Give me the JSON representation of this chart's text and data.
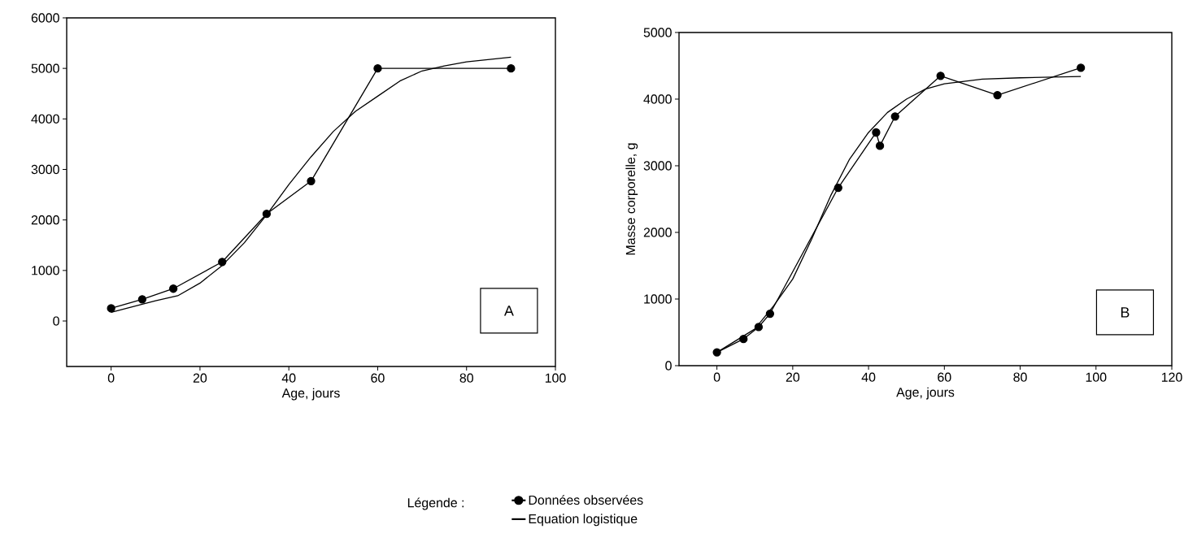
{
  "chart_data": [
    {
      "type": "line",
      "xlabel": "Age, jours",
      "xlim": [
        -10,
        100
      ],
      "ylim": [
        -900,
        6000
      ],
      "xticks": [
        0,
        20,
        40,
        60,
        80,
        100
      ],
      "yticks": [
        0,
        1000,
        2000,
        3000,
        4000,
        5000,
        6000
      ],
      "grid": false,
      "legend": false,
      "annotations": [
        "A"
      ],
      "series": [
        {
          "color": "#000000",
          "marker": "circle",
          "x": [
            0,
            7,
            14,
            25,
            35,
            45,
            60,
            90
          ],
          "values": [
            250,
            430,
            640,
            1170,
            2120,
            2770,
            5000,
            5000
          ]
        },
        {
          "color": "#000000",
          "marker": "none",
          "x": [
            0,
            10,
            15,
            20,
            25,
            30,
            35,
            40,
            45,
            50,
            55,
            60,
            65,
            70,
            75,
            80,
            90
          ],
          "values": [
            170,
            400,
            500,
            750,
            1100,
            1550,
            2100,
            2700,
            3250,
            3750,
            4150,
            4450,
            4750,
            4950,
            5050,
            5130,
            5220
          ]
        }
      ]
    },
    {
      "type": "line",
      "xlabel": "Age, jours",
      "ylabel": "Masse corporelle, g",
      "xlim": [
        -10,
        120
      ],
      "ylim": [
        0,
        5000
      ],
      "xticks": [
        0,
        20,
        40,
        60,
        80,
        100,
        120
      ],
      "yticks": [
        0,
        1000,
        2000,
        3000,
        4000,
        5000
      ],
      "grid": false,
      "legend": "bottom",
      "legend_title": "Légende :",
      "annotations": [
        "B"
      ],
      "series": [
        {
          "name": "Données observées",
          "color": "#000000",
          "marker": "circle",
          "x": [
            0,
            7,
            11,
            14,
            32,
            42,
            43,
            47,
            59,
            74,
            96
          ],
          "values": [
            200,
            400,
            580,
            780,
            2670,
            3500,
            3300,
            3740,
            4350,
            4060,
            4470
          ]
        },
        {
          "name": "Equation logistique",
          "color": "#000000",
          "marker": "none",
          "x": [
            0,
            10,
            15,
            20,
            25,
            30,
            35,
            40,
            45,
            50,
            55,
            60,
            70,
            80,
            96
          ],
          "values": [
            200,
            550,
            900,
            1300,
            1900,
            2550,
            3100,
            3500,
            3800,
            4000,
            4150,
            4230,
            4300,
            4320,
            4340
          ]
        }
      ]
    }
  ]
}
